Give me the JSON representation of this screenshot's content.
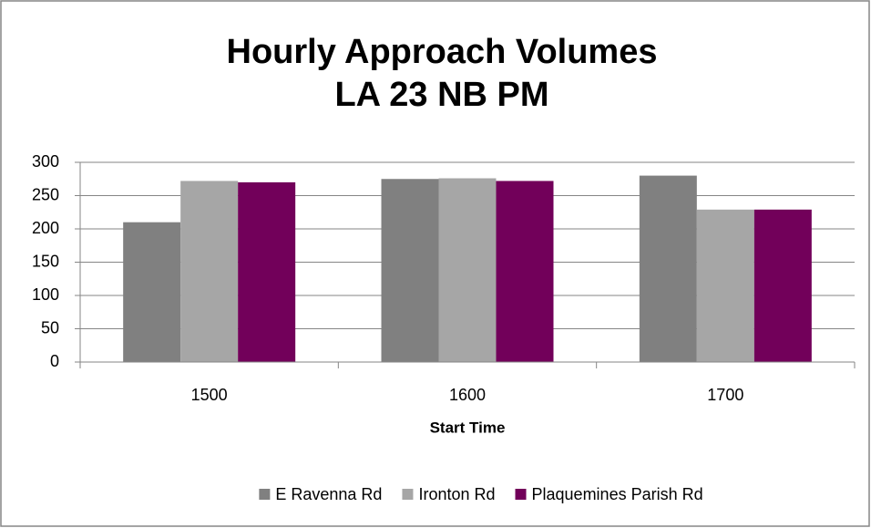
{
  "chart_data": {
    "type": "bar",
    "title": [
      "Hourly Approach Volumes",
      "LA 23 NB PM"
    ],
    "x_label": "Start Time",
    "categories": [
      "1500",
      "1600",
      "1700"
    ],
    "series": [
      {
        "name": "E Ravenna Rd",
        "color": "#808080",
        "values": [
          210,
          275,
          280
        ]
      },
      {
        "name": "Ironton Rd",
        "color": "#a6a6a6",
        "values": [
          272,
          276,
          229
        ]
      },
      {
        "name": "Plaquemines Parish Rd",
        "color": "#72005a",
        "values": [
          270,
          272,
          229
        ]
      }
    ],
    "ylim": [
      0,
      300
    ],
    "yticks": [
      0,
      50,
      100,
      150,
      200,
      250,
      300
    ],
    "grid": true,
    "legend": "bottom"
  }
}
